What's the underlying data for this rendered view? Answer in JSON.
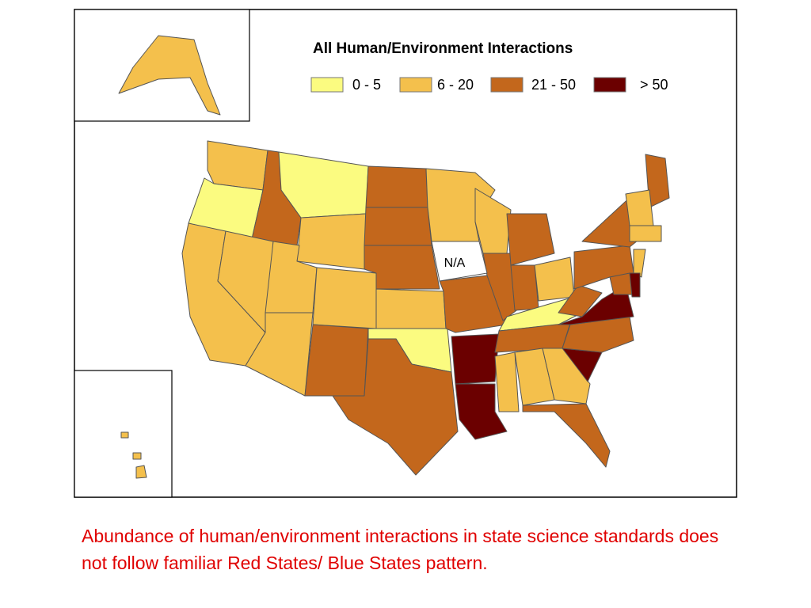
{
  "title": "All Human/Environment Interactions",
  "legend": [
    {
      "label": "0 - 5",
      "color": "#fbfb80"
    },
    {
      "label": "6 - 20",
      "color": "#f4c04c"
    },
    {
      "label": "21 - 50",
      "color": "#c3671c"
    },
    {
      "label": "> 50",
      "color": "#6b0000"
    }
  ],
  "na_label": "N/A",
  "caption": "Abundance of human/environment interactions in state science standards does not follow familiar Red States/ Blue States pattern."
}
